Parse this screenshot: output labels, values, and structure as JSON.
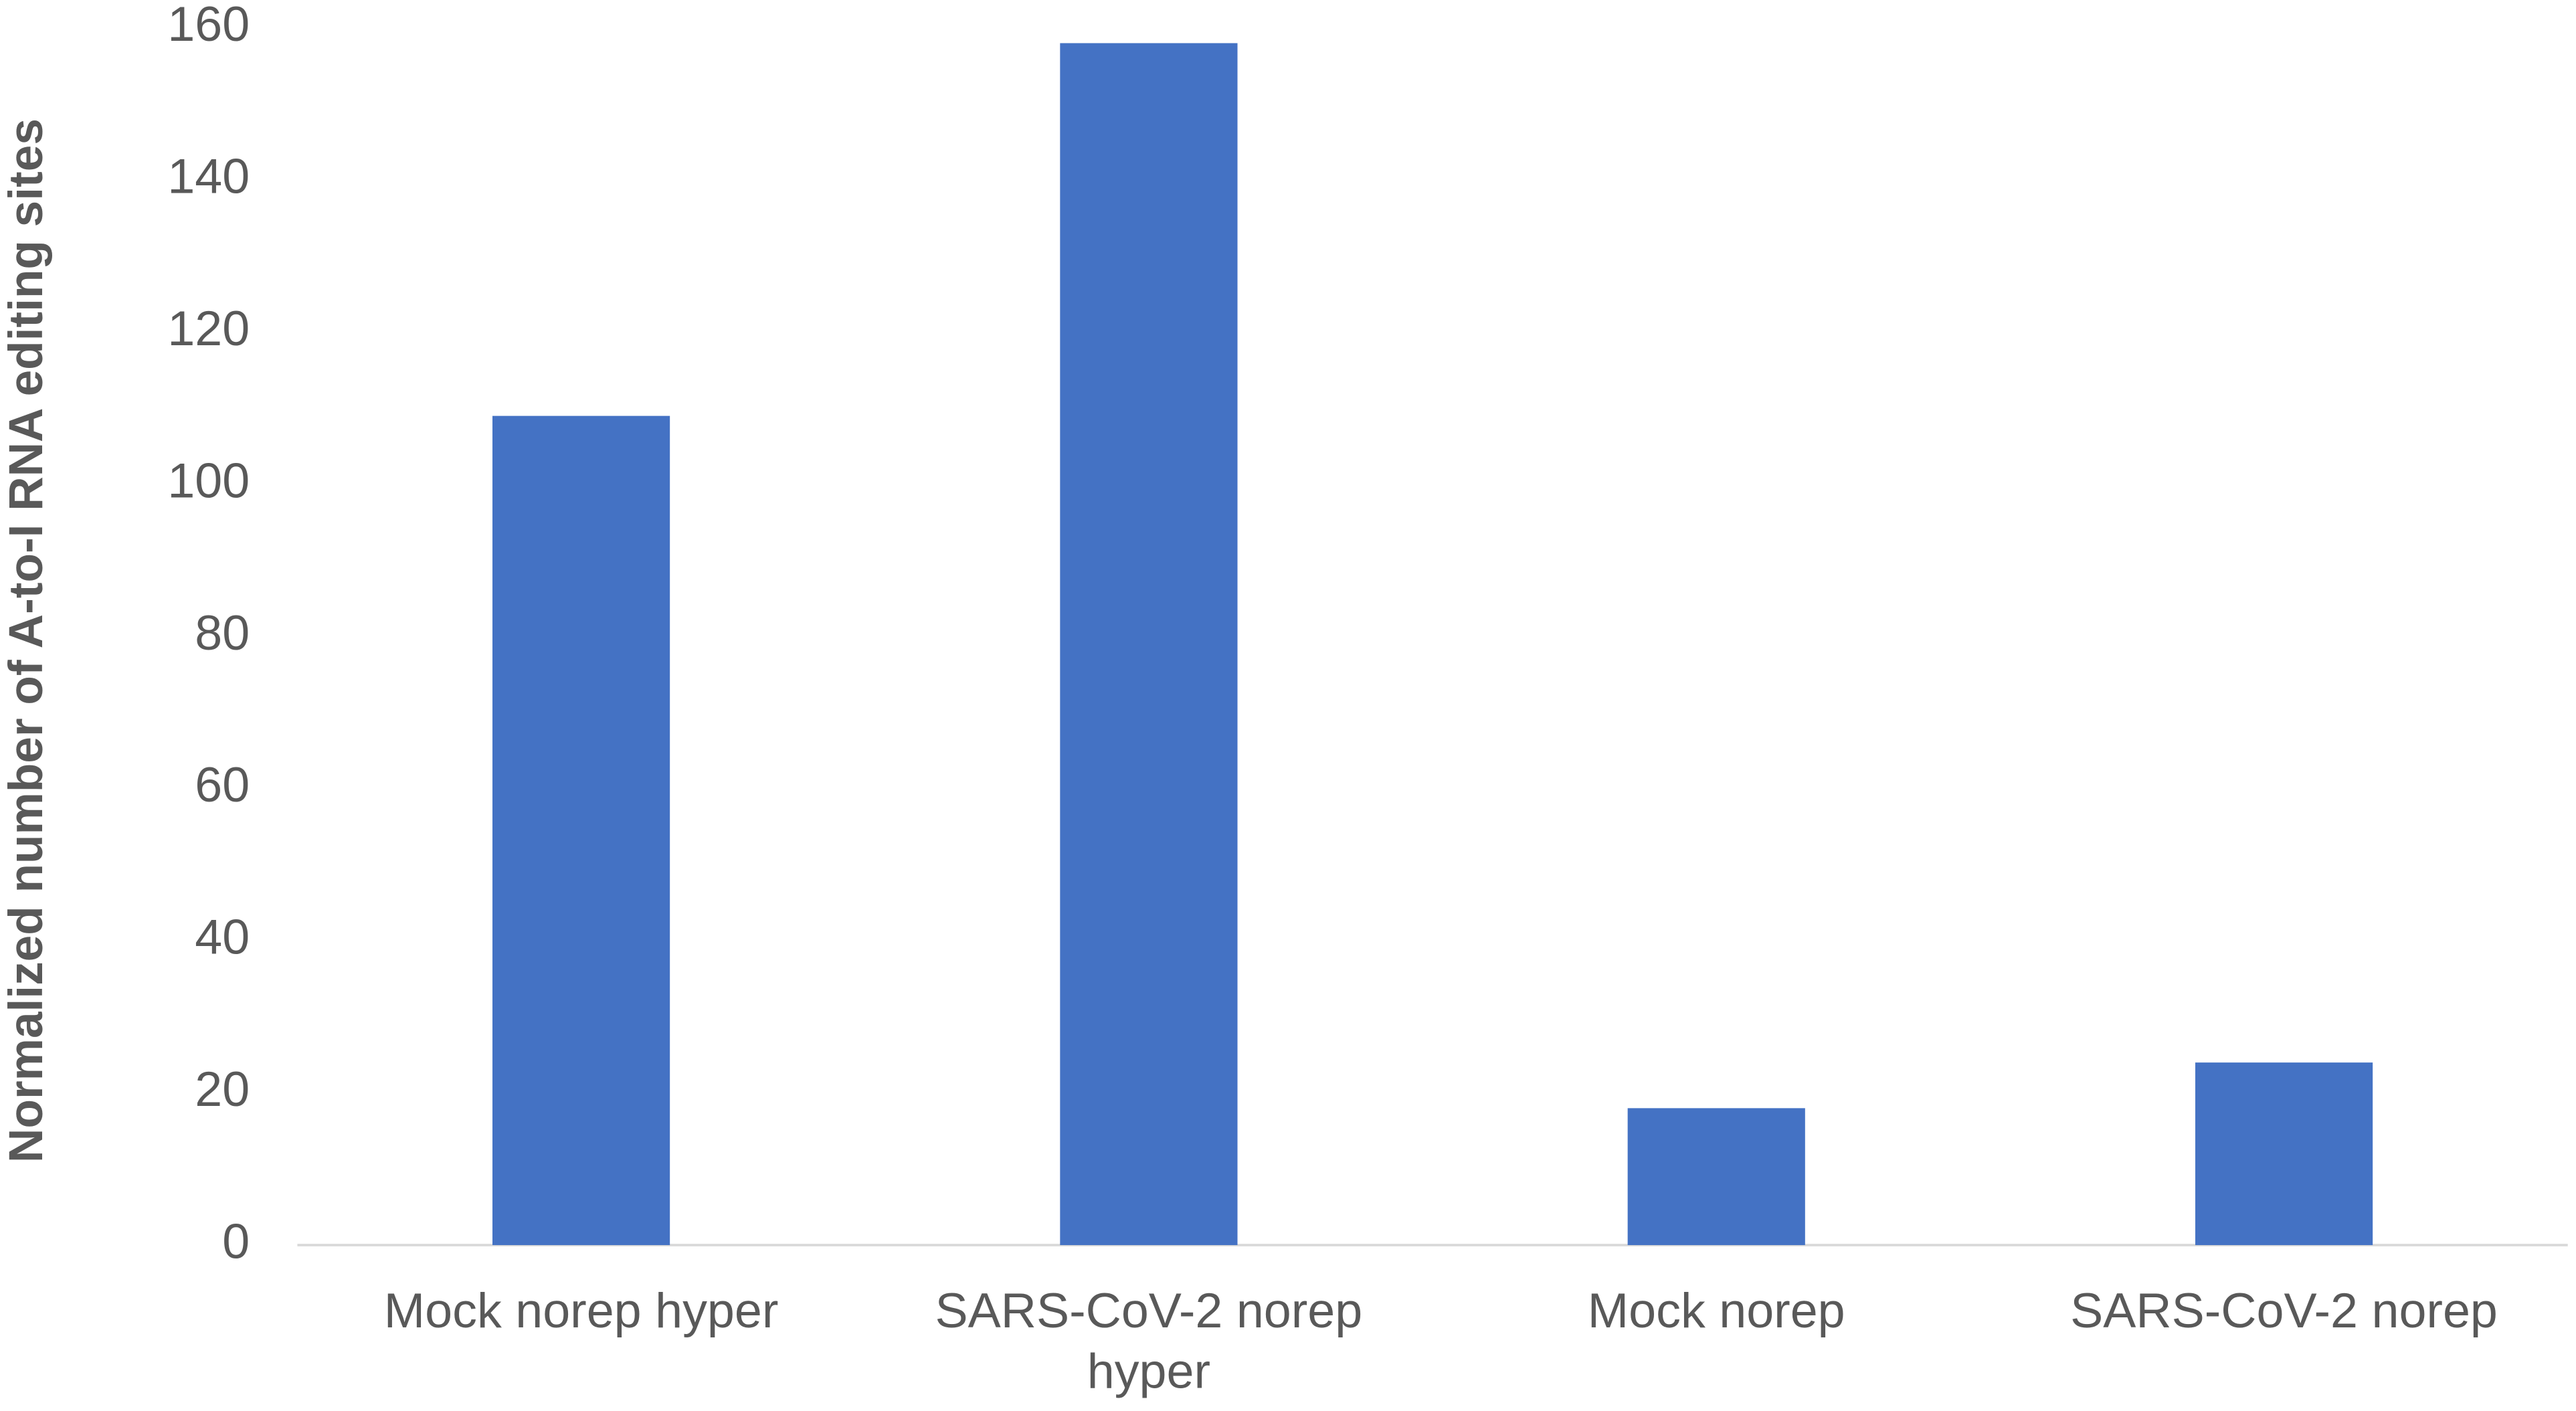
{
  "chart_data": {
    "type": "bar",
    "y_label": "Normalized number of A-to-I RNA editing sites",
    "categories": [
      "Mock norep hyper",
      "SARS-CoV-2 norep hyper",
      "Mock norep",
      "SARS-CoV-2 norep"
    ],
    "values": [
      109,
      158,
      18,
      24
    ],
    "color": "#4472c4",
    "ylim": [
      0,
      160
    ],
    "yticks": [
      0,
      20,
      40,
      60,
      80,
      100,
      120,
      140,
      160
    ],
    "grid": false
  }
}
